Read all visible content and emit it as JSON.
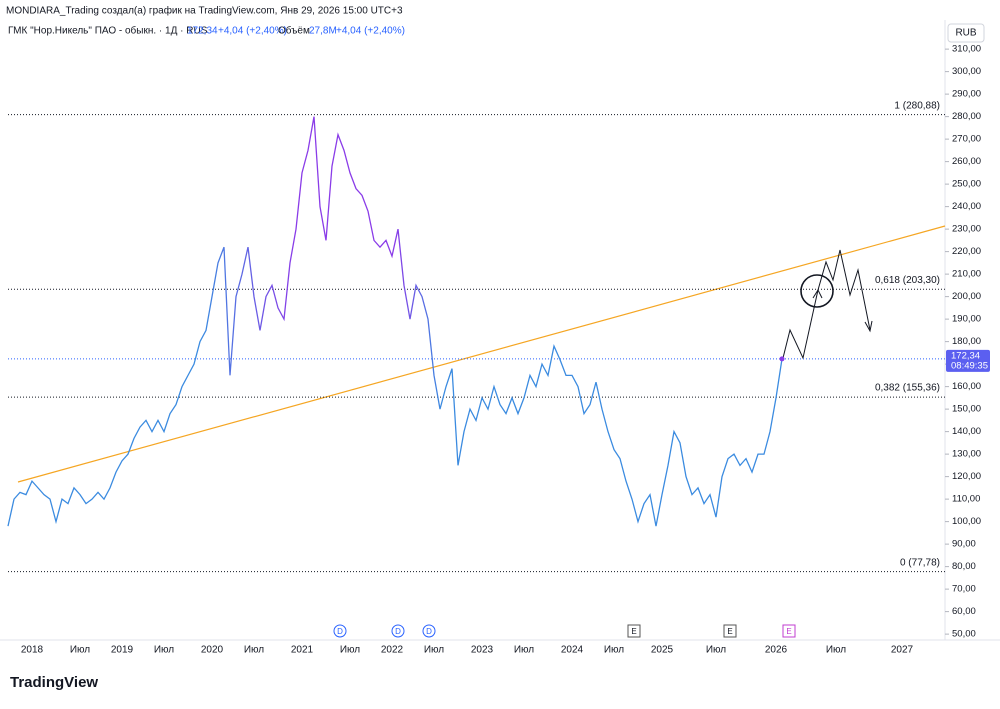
{
  "header": {
    "credit": "MONDIARA_Trading создал(а) график на TradingView.com, Янв 29, 2026 15:00 UTC+3",
    "symbol": "ГМК \"Нор.Никель\" ПАО - обыкн. · 1Д · RUS",
    "price": "172,34",
    "change": "+4,04 (+2,40%)",
    "volume_label": "Объём",
    "volume": "27,8M",
    "volume_change": "+4,04 (+2,40%)",
    "currency": "RUB"
  },
  "logo": "TradingView",
  "events": [
    {
      "label": "D"
    },
    {
      "label": "D"
    },
    {
      "label": "D"
    },
    {
      "label": "E"
    },
    {
      "label": "E"
    },
    {
      "label": "E"
    }
  ],
  "chart_data": {
    "type": "line",
    "grid": false,
    "colors": [
      "#3b8be0",
      "#8a3ce8"
    ],
    "categories": [
      null,
      null,
      null,
      null,
      "2018",
      null,
      null,
      null,
      null,
      null,
      null,
      null,
      "Июл",
      null,
      null,
      null,
      null,
      null,
      null,
      "2019",
      null,
      null,
      null,
      null,
      null,
      null,
      "Июл",
      null,
      null,
      null,
      null,
      null,
      null,
      null,
      "2020",
      null,
      null,
      null,
      null,
      null,
      null,
      "Июл",
      null,
      null,
      null,
      null,
      null,
      null,
      null,
      "2021",
      null,
      null,
      null,
      null,
      null,
      null,
      null,
      "Июл",
      null,
      null,
      null,
      null,
      null,
      null,
      "2022",
      null,
      null,
      null,
      null,
      null,
      null,
      "Июл",
      null,
      null,
      null,
      null,
      null,
      null,
      null,
      "2023",
      null,
      null,
      null,
      null,
      null,
      null,
      "Июл",
      null,
      null,
      null,
      null,
      null,
      null,
      null,
      "2024",
      null,
      null,
      null,
      null,
      null,
      null,
      "Июл",
      null,
      null,
      null,
      null,
      null,
      null,
      null,
      "2025",
      null,
      null,
      null,
      null,
      null,
      null,
      null,
      null,
      "Июл",
      null,
      null,
      null,
      null,
      null,
      null,
      null,
      null,
      null,
      "2026",
      null,
      null,
      null,
      null,
      null,
      null,
      null,
      null,
      null,
      "Июл",
      null,
      null,
      null,
      null,
      null,
      null,
      null,
      null,
      null,
      null,
      "2027"
    ],
    "values": [
      98,
      110,
      113,
      112,
      118,
      115,
      112,
      110,
      100,
      110,
      108,
      115,
      112,
      108,
      110,
      113,
      110,
      115,
      122,
      127,
      130,
      137,
      142,
      145,
      140,
      145,
      140,
      148,
      152,
      160,
      165,
      170,
      180,
      185,
      200,
      215,
      222,
      165,
      200,
      210,
      222,
      200,
      185,
      200,
      205,
      195,
      190,
      215,
      230,
      255,
      265,
      280,
      240,
      225,
      258,
      272,
      265,
      255,
      248,
      245,
      238,
      225,
      222,
      225,
      218,
      230,
      205,
      190,
      205,
      200,
      190,
      165,
      150,
      160,
      168,
      125,
      140,
      150,
      145,
      155,
      150,
      160,
      152,
      148,
      155,
      148,
      155,
      165,
      160,
      170,
      165,
      178,
      172,
      165,
      165,
      160,
      148,
      152,
      162,
      150,
      140,
      132,
      128,
      118,
      110,
      100,
      108,
      112,
      98,
      112,
      125,
      140,
      135,
      120,
      112,
      115,
      108,
      112,
      102,
      120,
      128,
      130,
      125,
      128,
      122,
      130,
      130,
      140,
      155,
      172.34,
      null,
      null,
      null,
      null,
      null,
      null,
      null,
      null,
      null,
      null,
      null,
      null,
      null,
      null,
      null,
      null,
      null,
      null,
      null,
      null
    ],
    "ylim": [
      42.5,
      318.5
    ],
    "yticks": [
      {
        "value": 50,
        "label": "50,00"
      },
      {
        "value": 60,
        "label": "60,00"
      },
      {
        "value": 70,
        "label": "70,00"
      },
      {
        "value": 80,
        "label": "80,00"
      },
      {
        "value": 90,
        "label": "90,00"
      },
      {
        "value": 100,
        "label": "100,00"
      },
      {
        "value": 110,
        "label": "110,00"
      },
      {
        "value": 120,
        "label": "120,00"
      },
      {
        "value": 130,
        "label": "130,00"
      },
      {
        "value": 140,
        "label": "140,00"
      },
      {
        "value": 150,
        "label": "150,00"
      },
      {
        "value": 160,
        "label": "160,00"
      },
      {
        "value": 170,
        "label": "170,00"
      },
      {
        "value": 180,
        "label": "180,00"
      },
      {
        "value": 190,
        "label": "190,00"
      },
      {
        "value": 200,
        "label": "200,00"
      },
      {
        "value": 210,
        "label": "210,00"
      },
      {
        "value": 220,
        "label": "220,00"
      },
      {
        "value": 230,
        "label": "230,00"
      },
      {
        "value": 240,
        "label": "240,00"
      },
      {
        "value": 250,
        "label": "250,00"
      },
      {
        "value": 260,
        "label": "260,00"
      },
      {
        "value": 270,
        "label": "270,00"
      },
      {
        "value": 280,
        "label": "280,00"
      },
      {
        "value": 290,
        "label": "290,00"
      },
      {
        "value": 300,
        "label": "300,00"
      },
      {
        "value": 310,
        "label": "310,00"
      }
    ],
    "levels": [
      {
        "value": 280.88,
        "label": "1 (280,88)"
      },
      {
        "value": 203.3,
        "label": "0,618 (203,30)"
      },
      {
        "value": 155.36,
        "label": "0,382 (155,36)"
      },
      {
        "value": 77.78,
        "label": "0 (77,78)"
      }
    ],
    "last_price": {
      "value": 172.34,
      "label": "172,34",
      "countdown": "08:49:35"
    }
  }
}
